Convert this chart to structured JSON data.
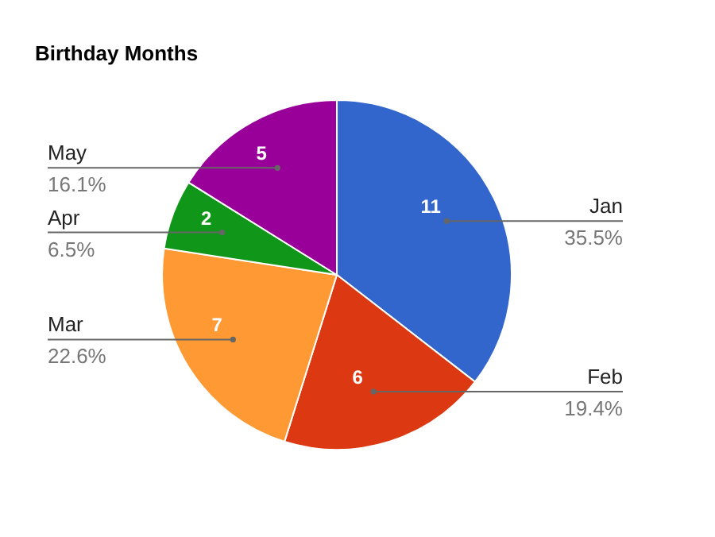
{
  "chart_data": {
    "type": "pie",
    "title": "Birthday Months",
    "categories": [
      "Jan",
      "Feb",
      "Mar",
      "Apr",
      "May"
    ],
    "values": [
      11,
      6,
      7,
      2,
      5
    ],
    "colors": [
      "#3366cc",
      "#dc3912",
      "#ff9933",
      "#109618",
      "#990099"
    ],
    "value_labels": [
      "11",
      "6",
      "7",
      "2",
      "5"
    ],
    "annotations": [
      {
        "text": "35.5%",
        "x": "Jan"
      },
      {
        "text": "19.4%",
        "x": "Feb"
      },
      {
        "text": "22.6%",
        "x": "Mar"
      },
      {
        "text": "6.5%",
        "x": "Apr"
      },
      {
        "text": "16.1%",
        "x": "May"
      }
    ],
    "legend": false
  }
}
